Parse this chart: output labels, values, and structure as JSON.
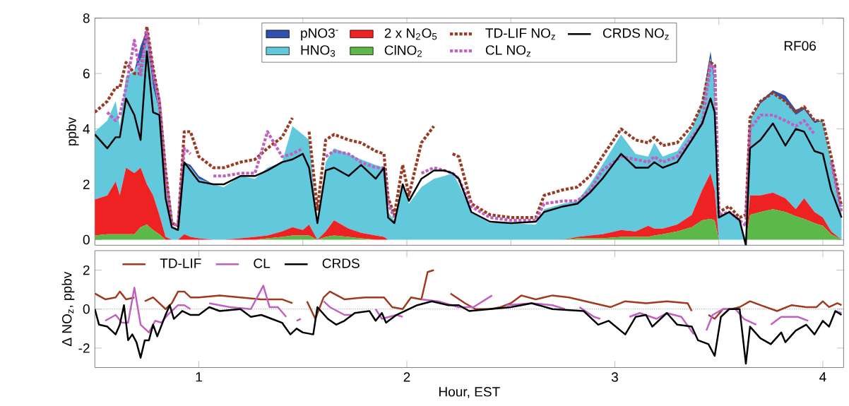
{
  "chart_data": [
    {
      "type": "area",
      "stacked": true,
      "ylabel": "ppbv",
      "legend": "top",
      "tick_labels": "y",
      "annotations": [
        "RF06"
      ],
      "xlim": [
        0.5,
        4.1
      ],
      "ylim": [
        -0.2,
        8
      ],
      "xticks": [
        1,
        1.5,
        2,
        2.5,
        3,
        3.5,
        4
      ],
      "yticks": [
        0,
        2,
        4,
        6,
        8
      ],
      "x": [
        0.5,
        0.56,
        0.6,
        0.62,
        0.65,
        0.69,
        0.72,
        0.75,
        0.78,
        0.81,
        0.84,
        0.87,
        0.9,
        0.93,
        0.96,
        1.0,
        1.07,
        1.12,
        1.2,
        1.27,
        1.33,
        1.4,
        1.45,
        1.5,
        1.53,
        1.57,
        1.61,
        1.65,
        1.72,
        1.78,
        1.85,
        1.89,
        1.91,
        1.94,
        1.98,
        2.01,
        2.07,
        2.13,
        2.18,
        2.22,
        2.25,
        2.31,
        2.4,
        2.5,
        2.62,
        2.66,
        2.75,
        2.82,
        2.88,
        2.94,
        3.03,
        3.1,
        3.16,
        3.19,
        3.23,
        3.3,
        3.37,
        3.42,
        3.46,
        3.48,
        3.5,
        3.55,
        3.6,
        3.63,
        3.65,
        3.7,
        3.76,
        3.82,
        3.87,
        3.91,
        3.96,
        4.0,
        4.04,
        4.09
      ],
      "series": [
        {
          "name": "ClNO$_{2}$",
          "type": "area",
          "color": "#5cb848",
          "values": [
            0.15,
            0.2,
            0.2,
            0.2,
            0.2,
            0.2,
            0.45,
            0.55,
            0.35,
            0.2,
            0,
            0,
            0,
            0,
            0,
            0,
            0,
            0,
            0,
            0,
            0.05,
            0.1,
            0.15,
            0.15,
            0.15,
            0,
            0.1,
            0.15,
            0.1,
            0.05,
            0,
            0,
            0,
            0,
            0,
            0,
            0,
            0,
            0,
            0,
            0,
            0,
            0,
            0,
            0,
            0,
            0,
            0.05,
            0.05,
            0.05,
            0.1,
            0.1,
            0.1,
            0.15,
            0.2,
            0.3,
            0.45,
            0.7,
            0.75,
            0.7,
            0,
            0,
            0,
            0,
            0.9,
            1.0,
            1.1,
            1.0,
            0.85,
            0.75,
            0.6,
            0.5,
            0.2,
            0
          ]
        },
        {
          "name": "2 x N$_{2}$O$_{5}$",
          "type": "area",
          "color": "#ee2222",
          "values": [
            1.3,
            1.4,
            1.9,
            1.4,
            2.4,
            2.2,
            2.15,
            1.45,
            1.25,
            0.7,
            0.1,
            0,
            0,
            0.2,
            0.1,
            0.05,
            0,
            0,
            0.05,
            0.1,
            0.1,
            0.2,
            0.3,
            0.2,
            0.4,
            0,
            0.2,
            0.55,
            0.3,
            0.2,
            0.15,
            0.1,
            0,
            0,
            0,
            0,
            0,
            0,
            0,
            0,
            0,
            0,
            0,
            0,
            0,
            0,
            0,
            0.05,
            0.1,
            0.15,
            0.25,
            0.2,
            0.4,
            0.25,
            0.2,
            0.25,
            0.45,
            1.1,
            1.65,
            1.1,
            0,
            0,
            0,
            0,
            0.7,
            0.6,
            0.6,
            0.5,
            0.25,
            0.75,
            0.4,
            0.3,
            0.1,
            0
          ]
        },
        {
          "name": "HNO$_{3}$",
          "type": "area",
          "color": "#62c8dc",
          "values": [
            2.45,
            2.7,
            2.9,
            2.5,
            3.3,
            3.7,
            3.9,
            5.2,
            3.9,
            3.7,
            1.9,
            0.5,
            0.4,
            2.6,
            2.5,
            2.15,
            2.0,
            1.9,
            2.25,
            2.1,
            2.45,
            2.5,
            3.65,
            3.45,
            3.05,
            0.7,
            2.5,
            2.6,
            2.7,
            2.65,
            2.55,
            2.5,
            1.0,
            0.7,
            2.0,
            1.3,
            1.9,
            2.2,
            2.3,
            2.4,
            2.0,
            1.0,
            0.6,
            0.6,
            0.55,
            1.1,
            1.3,
            1.3,
            1.85,
            2.5,
            3.45,
            2.8,
            2.5,
            3.1,
            2.6,
            2.65,
            3.1,
            3.2,
            4.15,
            3.7,
            0.9,
            1.0,
            0.7,
            0,
            2.7,
            3.3,
            3.6,
            3.5,
            3.4,
            3.2,
            3.2,
            3.5,
            2.5,
            1.0
          ]
        },
        {
          "name": "pNO3$^{-}$",
          "type": "area",
          "color": "#3050b0",
          "values": [
            0,
            0,
            0,
            0,
            0,
            0,
            0.5,
            0.4,
            0.4,
            0,
            0,
            0,
            0,
            0,
            0.1,
            0.1,
            0,
            0,
            0,
            0,
            0,
            0,
            0,
            0,
            0,
            0,
            0,
            0,
            0,
            0,
            0,
            0,
            0,
            0,
            0,
            0,
            0,
            0,
            0,
            0,
            0,
            0,
            0,
            0,
            0,
            0,
            0,
            0,
            0,
            0,
            0,
            0,
            0,
            0,
            0,
            0,
            0,
            0,
            0.25,
            0.2,
            0,
            0,
            0,
            0,
            0,
            0.1,
            0.1,
            0.2,
            0.2,
            0.1,
            0.1,
            0,
            0,
            0
          ]
        },
        {
          "name": "TD-LIF NO$_{z}$",
          "type": "line",
          "line_style": "dotted",
          "color": "#9a3a22",
          "values": [
            4.6,
            5.0,
            5.5,
            5.5,
            6.4,
            6.0,
            6.0,
            7.7,
            6.2,
            5.0,
            2.5,
            0.6,
            0.5,
            3.9,
            3.9,
            3.0,
            2.6,
            2.6,
            2.8,
            2.9,
            3.3,
            3.7,
            4.4,
            null,
            3.9,
            1.1,
            3.6,
            3.8,
            3.6,
            3.5,
            3.2,
            3.1,
            1.5,
            0.9,
            2.7,
            1.6,
            3.5,
            4.1,
            null,
            3.1,
            3.0,
            1.3,
            0.9,
            0.8,
            0.8,
            1.6,
            1.8,
            1.9,
            2.3,
            3.0,
            4.0,
            3.6,
            3.5,
            3.7,
            3.4,
            3.5,
            4.1,
            4.9,
            6.4,
            6.3,
            1.0,
            1.2,
            0.8,
            0.9,
            4.4,
            5.0,
            5.3,
            5.0,
            4.6,
            4.8,
            4.3,
            4.3,
            3.0,
            1.2
          ]
        },
        {
          "name": "CL NO$_{z}$",
          "type": "line",
          "line_style": "dotted",
          "color": "#c060c0",
          "values": [
            null,
            4.6,
            4.3,
            4.5,
            5.5,
            7.2,
            5.9,
            7.5,
            6.0,
            5.0,
            2.3,
            0.6,
            0.5,
            3.3,
            3.1,
            null,
            2.3,
            2.3,
            2.4,
            2.4,
            3.9,
            3.0,
            3.1,
            3.3,
            null,
            null,
            3.0,
            3.2,
            3.1,
            2.8,
            2.6,
            2.6,
            1.3,
            0.8,
            null,
            null,
            2.4,
            2.6,
            2.5,
            2.4,
            2.2,
            1.2,
            0.8,
            0.7,
            0.7,
            1.3,
            1.4,
            1.4,
            1.8,
            2.5,
            3.0,
            2.9,
            2.8,
            3.0,
            2.8,
            3.0,
            3.7,
            4.2,
            6.3,
            6.2,
            0.9,
            1.0,
            0.7,
            0.5,
            4.0,
            4.5,
            4.5,
            4.3,
            4.1,
            4.3,
            3.8,
            null,
            2.8,
            1.0
          ]
        },
        {
          "name": "CRDS NO$_{z}$",
          "type": "line",
          "line_style": "solid",
          "color": "#000000",
          "values": [
            3.8,
            3.3,
            3.7,
            3.7,
            5.1,
            4.5,
            3.6,
            6.8,
            4.6,
            4.5,
            1.5,
            0.45,
            0.35,
            2.8,
            2.5,
            2.1,
            2.0,
            2.0,
            2.3,
            2.3,
            2.5,
            2.8,
            2.9,
            3.1,
            2.6,
            0.6,
            2.5,
            2.6,
            2.3,
            2.7,
            2.2,
            2.6,
            0.8,
            0.6,
            2.0,
            1.4,
            2.2,
            2.5,
            2.5,
            2.4,
            2.2,
            1.0,
            0.65,
            0.6,
            0.65,
            1.0,
            1.2,
            1.3,
            1.7,
            2.2,
            3.1,
            2.6,
            2.6,
            2.8,
            2.6,
            2.8,
            3.6,
            4.2,
            5.1,
            4.6,
            0.8,
            1.0,
            0.7,
            -0.2,
            3.3,
            3.6,
            4.2,
            3.4,
            4.0,
            3.9,
            3.2,
            3.1,
            1.8,
            0.8
          ]
        }
      ]
    },
    {
      "type": "line",
      "xlabel": "Hour, EST",
      "ylabel": "Δ NO$_{z}$, ppbv",
      "legend": "top left",
      "xlim": [
        0.5,
        4.1
      ],
      "ylim": [
        -3,
        3
      ],
      "xticks": [
        1,
        2,
        3,
        4
      ],
      "yticks": [
        -2,
        0,
        2
      ],
      "ref_lines": [
        {
          "axis": "y",
          "value": 0,
          "color": "#999999",
          "line_style": "dotted"
        }
      ],
      "series": [
        {
          "name": "TD-LIF",
          "color": "#a0391e",
          "x": [
            0.5,
            0.55,
            0.6,
            0.62,
            0.65,
            0.69,
            0.72,
            0.74,
            0.78,
            0.81,
            0.84,
            0.87,
            0.9,
            0.93,
            0.96,
            1.0,
            1.1,
            1.2,
            1.3,
            1.4,
            1.45,
            1.5,
            1.52,
            1.56,
            1.6,
            1.63,
            1.7,
            1.8,
            1.89,
            1.93,
            1.98,
            2.02,
            2.07,
            2.1,
            2.13,
            2.16,
            2.21,
            2.28,
            2.33,
            2.4,
            2.45,
            2.5,
            2.55,
            2.62,
            2.7,
            2.78,
            2.9,
            2.98,
            3.05,
            3.15,
            3.25,
            3.35,
            3.37,
            3.4,
            3.45,
            3.48,
            3.52,
            3.56,
            3.6,
            3.65,
            3.7,
            3.78,
            3.85,
            3.92,
            3.97,
            4.0,
            4.03,
            4.07,
            4.09
          ],
          "values": [
            0.8,
            0.5,
            0.6,
            0.9,
            0.5,
            0.6,
            null,
            0.4,
            0.6,
            0.3,
            0.0,
            0.3,
            0.9,
            0.9,
            0.6,
            0.6,
            0.7,
            0.6,
            0.5,
            0.5,
            0.3,
            null,
            0.4,
            -0.5,
            0.6,
            0.9,
            0.5,
            0.6,
            0.6,
            0.1,
            0.0,
            0.6,
            0.5,
            1.9,
            2.0,
            null,
            0.8,
            0.3,
            0.0,
            0.0,
            0.1,
            0.3,
            0.7,
            0.5,
            0.7,
            0.6,
            0.3,
            0.1,
            0.4,
            0.3,
            0.4,
            0.3,
            -0.1,
            null,
            -0.3,
            -0.5,
            0.0,
            0.0,
            0.1,
            0.4,
            0.2,
            -0.1,
            0.2,
            0.1,
            0.1,
            0.4,
            0.1,
            0.3,
            0.2
          ]
        },
        {
          "name": "CL",
          "color": "#c060c0",
          "x": [
            0.55,
            0.6,
            0.63,
            0.66,
            0.69,
            0.72,
            0.76,
            0.79,
            0.82,
            0.85,
            0.9,
            0.93,
            0.96,
            1.0,
            1.05,
            1.15,
            1.25,
            1.28,
            1.31,
            1.34,
            1.38,
            1.42,
            1.45,
            1.47,
            1.49,
            1.52,
            1.6,
            1.63,
            1.7,
            1.74,
            1.78,
            1.85,
            1.88,
            1.95,
            1.98,
            2.02,
            2.07,
            2.15,
            2.25,
            2.32,
            2.41,
            2.43,
            2.48,
            2.6,
            2.7,
            2.76,
            2.8,
            2.83,
            2.9,
            2.93,
            2.99,
            3.07,
            3.12,
            3.2,
            3.25,
            3.32,
            3.38,
            3.4,
            3.44,
            3.47,
            3.52,
            3.58,
            3.62,
            3.68,
            3.71,
            3.75,
            3.8,
            3.88,
            3.93,
            3.98,
            4.06,
            4.09
          ],
          "values": [
            -0.6,
            -0.3,
            -0.7,
            -0.7,
            1.1,
            -0.8,
            -1.2,
            -0.6,
            -0.7,
            -0.3,
            0.2,
            0.2,
            0.0,
            null,
            0.3,
            0.1,
            0.0,
            0.6,
            1.2,
            0.1,
            0.1,
            -0.4,
            null,
            -0.6,
            -0.5,
            null,
            0.4,
            0.1,
            -0.3,
            -0.3,
            null,
            0.0,
            -0.5,
            -0.3,
            -0.4,
            null,
            0.5,
            0.4,
            0.1,
            0.1,
            0.7,
            null,
            0.2,
            0.3,
            0.2,
            0.0,
            null,
            0.1,
            -0.4,
            -0.5,
            null,
            -0.4,
            -0.2,
            -0.5,
            -0.2,
            -0.4,
            -1.3,
            null,
            -1.1,
            -0.3,
            0.0,
            0.0,
            -0.5,
            -0.8,
            null,
            -0.8,
            -0.4,
            -0.4,
            -0.6,
            null,
            -0.1,
            -0.2
          ]
        },
        {
          "name": "CRDS",
          "color": "#000000",
          "x": [
            0.5,
            0.52,
            0.56,
            0.6,
            0.62,
            0.64,
            0.66,
            0.68,
            0.7,
            0.72,
            0.74,
            0.76,
            0.78,
            0.8,
            0.84,
            0.86,
            0.88,
            0.92,
            0.96,
            1.0,
            1.05,
            1.1,
            1.2,
            1.25,
            1.3,
            1.35,
            1.4,
            1.44,
            1.47,
            1.5,
            1.55,
            1.57,
            1.62,
            1.66,
            1.7,
            1.75,
            1.82,
            1.85,
            1.88,
            1.9,
            1.95,
            2.05,
            2.12,
            2.2,
            2.25,
            2.3,
            2.4,
            2.5,
            2.6,
            2.7,
            2.85,
            2.92,
            2.97,
            3.05,
            3.1,
            3.15,
            3.18,
            3.25,
            3.3,
            3.37,
            3.4,
            3.45,
            3.48,
            3.51,
            3.55,
            3.6,
            3.63,
            3.65,
            3.7,
            3.75,
            3.8,
            3.82,
            3.87,
            3.92,
            3.96,
            4.0,
            4.03,
            4.06,
            4.09
          ],
          "values": [
            0.0,
            -0.8,
            -0.9,
            -1.3,
            -0.8,
            0.2,
            -1.6,
            -1.3,
            -1.7,
            -2.5,
            -1.6,
            -1.6,
            -0.8,
            -1.4,
            -0.3,
            0.2,
            -0.5,
            -0.1,
            -0.3,
            -0.3,
            0.1,
            -0.1,
            0.0,
            -0.4,
            -0.3,
            -0.5,
            -0.7,
            -1.3,
            -1.0,
            -1.2,
            -1.3,
            0.1,
            -0.5,
            -0.8,
            -0.6,
            -0.2,
            -0.1,
            -0.6,
            -0.2,
            -0.7,
            -0.3,
            0.2,
            0.4,
            0.2,
            0.2,
            -0.1,
            0.0,
            0.1,
            0.3,
            0.0,
            -0.1,
            -0.8,
            -0.6,
            -1.3,
            -0.4,
            -0.3,
            -0.9,
            -0.2,
            -0.8,
            -0.9,
            -1.6,
            -1.8,
            -2.4,
            -0.4,
            0.0,
            0.0,
            -2.8,
            -0.9,
            -1.5,
            -1.8,
            -1.2,
            -1.7,
            -1.1,
            -0.8,
            -1.3,
            -0.6,
            -0.9,
            -0.1,
            -0.3
          ]
        }
      ]
    }
  ]
}
